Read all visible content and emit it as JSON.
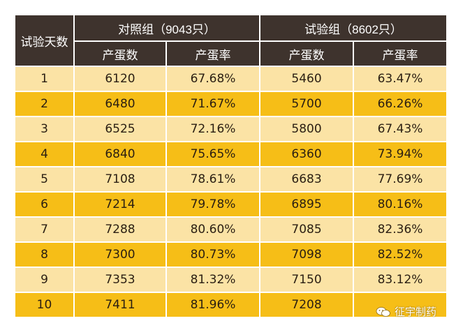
{
  "header": {
    "day_label": "试验天数",
    "control_group": "对照组（9043只）",
    "test_group": "试验组（8602只）",
    "eggs_label": "产蛋数",
    "rate_label": "产蛋率"
  },
  "rows": [
    {
      "day": "1",
      "c_eggs": "6120",
      "c_rate": "67.68%",
      "t_eggs": "5460",
      "t_rate": "63.47%"
    },
    {
      "day": "2",
      "c_eggs": "6480",
      "c_rate": "71.67%",
      "t_eggs": "5700",
      "t_rate": "66.26%"
    },
    {
      "day": "3",
      "c_eggs": "6525",
      "c_rate": "72.16%",
      "t_eggs": "5800",
      "t_rate": "67.43%"
    },
    {
      "day": "4",
      "c_eggs": "6840",
      "c_rate": "75.65%",
      "t_eggs": "6360",
      "t_rate": "73.94%"
    },
    {
      "day": "5",
      "c_eggs": "7108",
      "c_rate": "78.61%",
      "t_eggs": "6683",
      "t_rate": "77.69%"
    },
    {
      "day": "6",
      "c_eggs": "7214",
      "c_rate": "79.78%",
      "t_eggs": "6895",
      "t_rate": "80.16%"
    },
    {
      "day": "7",
      "c_eggs": "7288",
      "c_rate": "80.60%",
      "t_eggs": "7085",
      "t_rate": "82.36%"
    },
    {
      "day": "8",
      "c_eggs": "7300",
      "c_rate": "80.73%",
      "t_eggs": "7098",
      "t_rate": "82.52%"
    },
    {
      "day": "9",
      "c_eggs": "7353",
      "c_rate": "81.32%",
      "t_eggs": "7150",
      "t_rate": "83.12%"
    },
    {
      "day": "10",
      "c_eggs": "7411",
      "c_rate": "81.96%",
      "t_eggs": "7208",
      "t_rate": ""
    }
  ],
  "watermark": {
    "text": "征宇制药",
    "icon": "wechat-icon"
  },
  "colors": {
    "header_bg": "#3e332d",
    "row_light": "#fbe3a5",
    "row_dark": "#f6be17"
  }
}
